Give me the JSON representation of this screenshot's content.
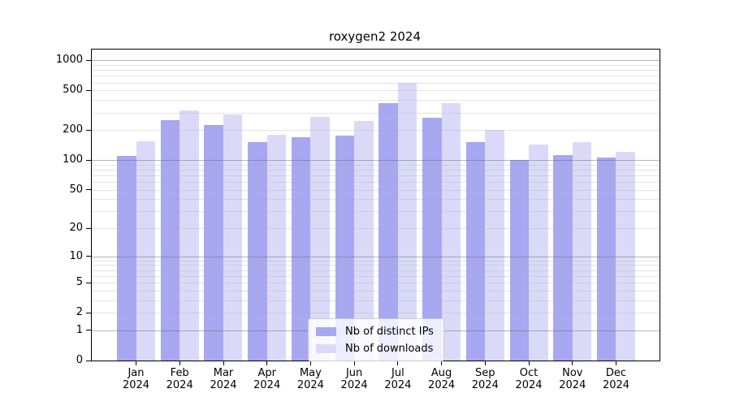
{
  "title": "roxygen2 2024",
  "chart_data": {
    "type": "bar",
    "title": "roxygen2 2024",
    "categories": [
      "Jan",
      "Feb",
      "Mar",
      "Apr",
      "May",
      "Jun",
      "Jul",
      "Aug",
      "Sep",
      "Oct",
      "Nov",
      "Dec"
    ],
    "category_year": "2024",
    "series": [
      {
        "name": "Nb of distinct IPs",
        "color": "#a7a7f2",
        "values": [
          110,
          250,
          225,
          150,
          170,
          175,
          370,
          265,
          150,
          100,
          112,
          106
        ]
      },
      {
        "name": "Nb of downloads",
        "color": "#dadaf8",
        "values": [
          155,
          315,
          285,
          180,
          270,
          245,
          600,
          375,
          200,
          142,
          150,
          120
        ]
      }
    ],
    "yscale": "log1p",
    "yticks": [
      0,
      1,
      2,
      5,
      10,
      20,
      50,
      100,
      200,
      500,
      1000
    ],
    "ylim": [
      0,
      1280
    ],
    "grid": true,
    "legend_position": "lower center",
    "background_color": "#ffffff",
    "axis_color": "#000000"
  }
}
